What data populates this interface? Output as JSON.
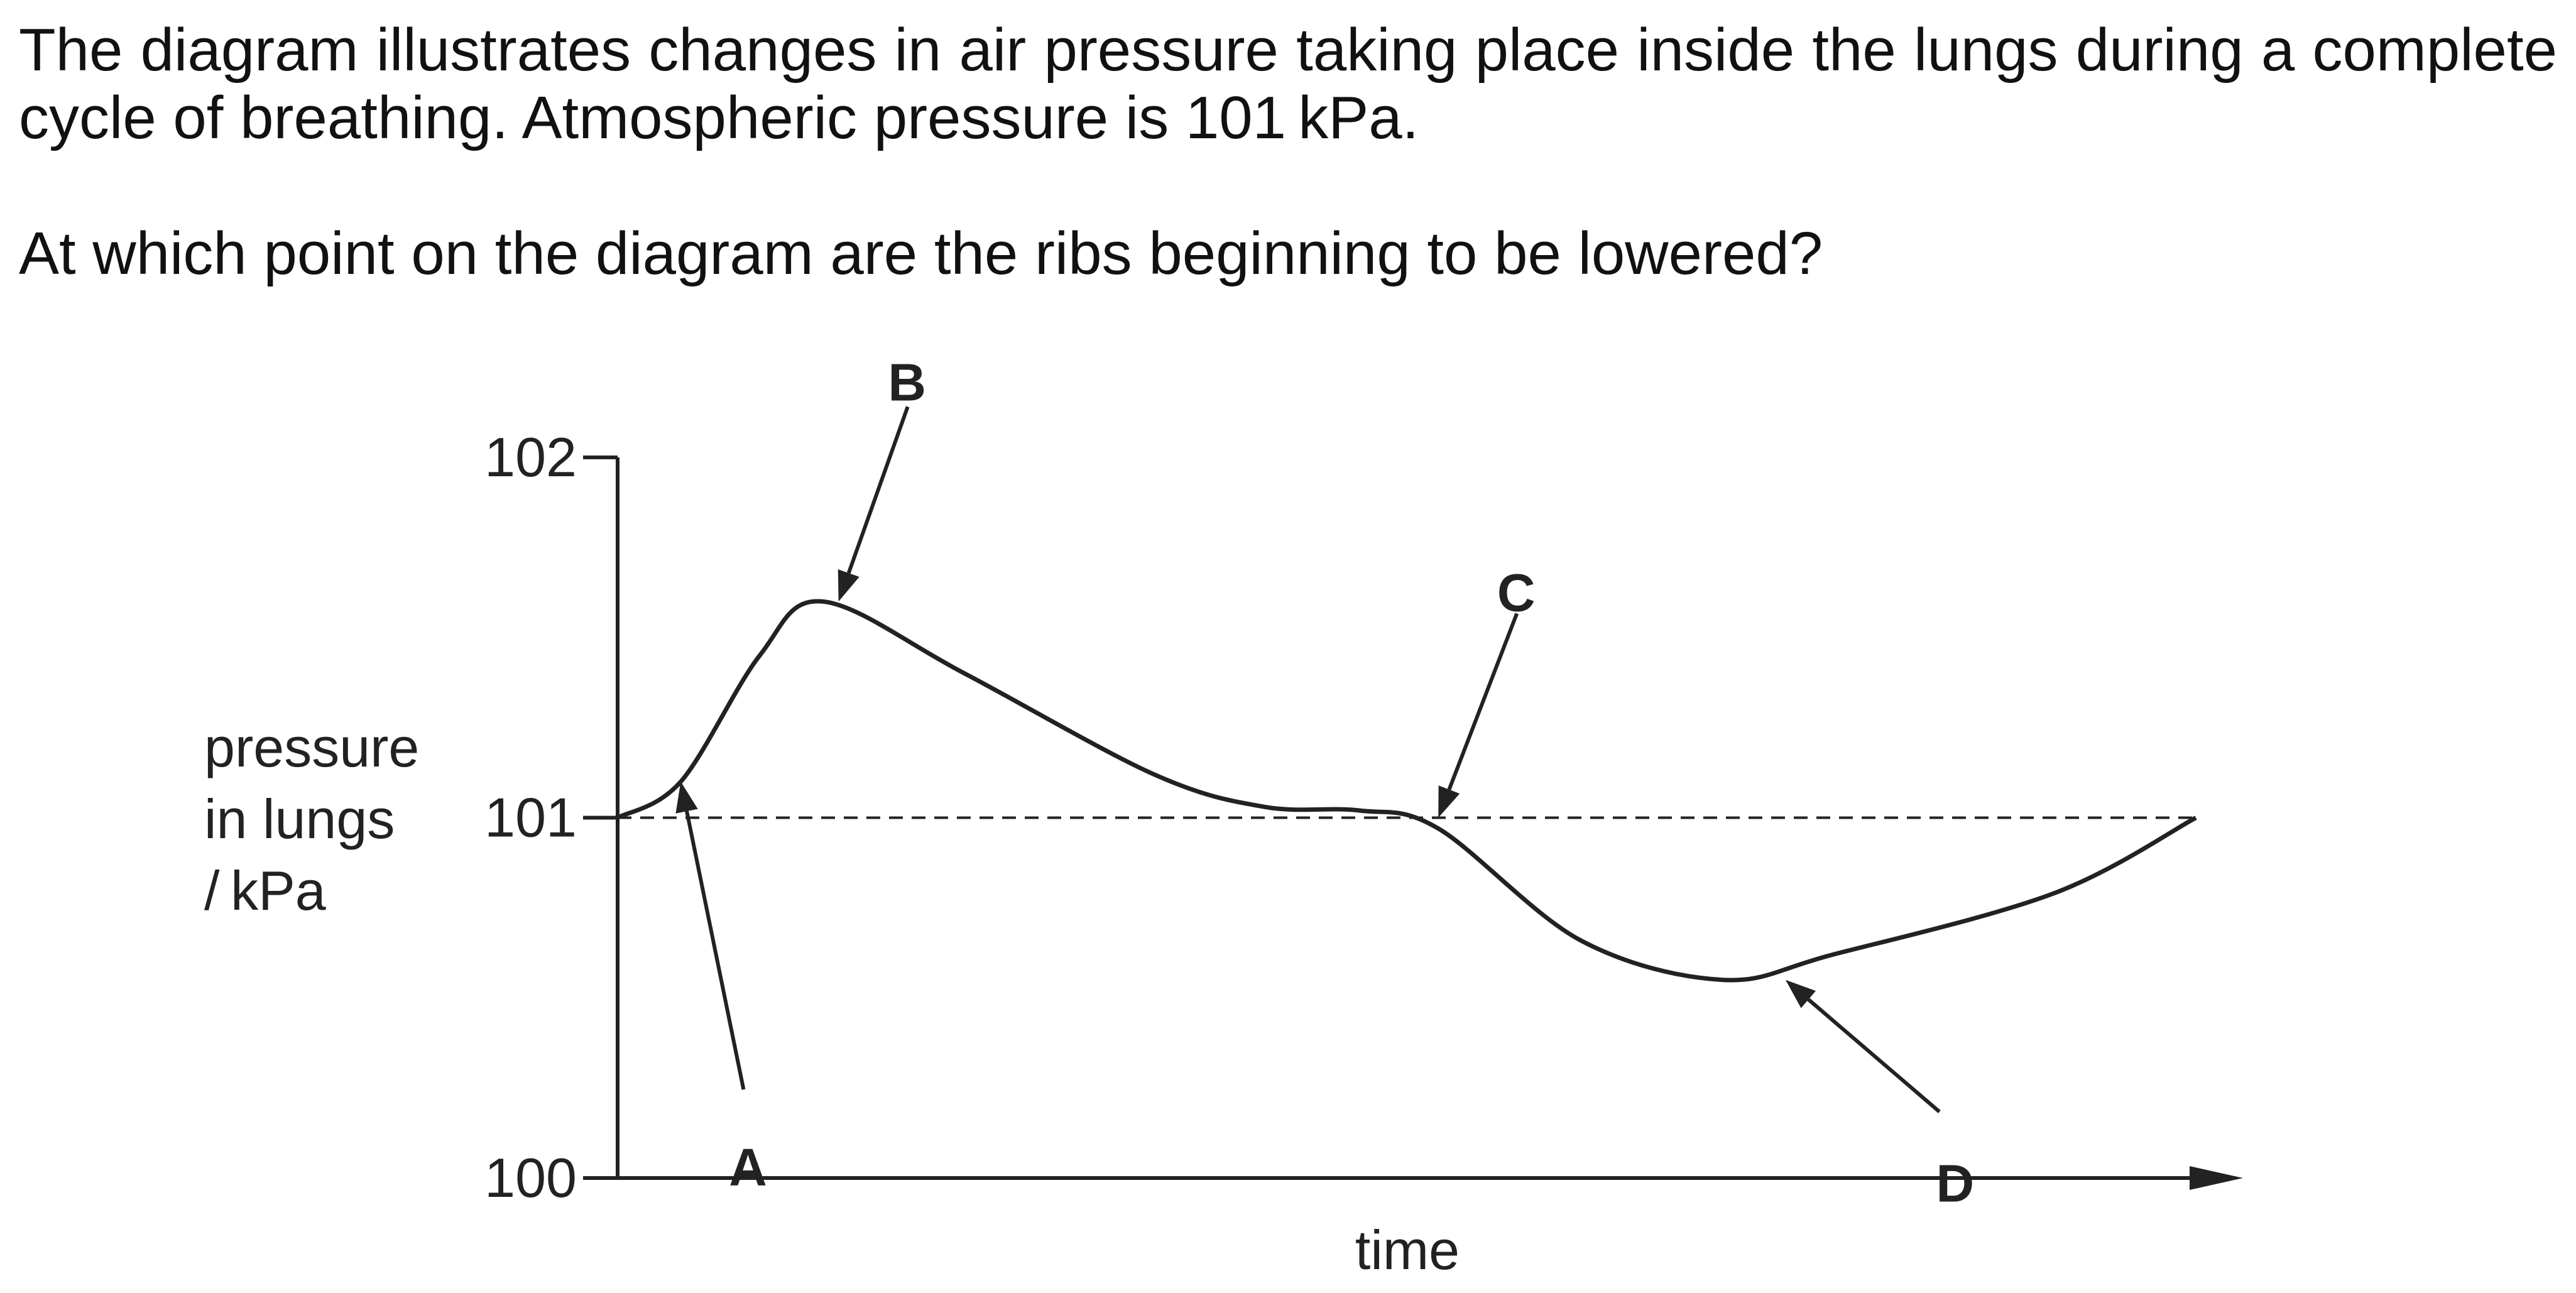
{
  "question": {
    "line1": "The diagram illustrates changes in air pressure taking place inside the lungs during a complete",
    "line2": "cycle of breathing. Atmospheric pressure is 101 kPa.",
    "line3": "At which point on the diagram are the ribs beginning to be lowered?"
  },
  "colors": {
    "ink": "#222222",
    "background": "#ffffff"
  },
  "chart_data": {
    "type": "line",
    "title": "",
    "xlabel": "time",
    "ylabel": [
      "pressure",
      "in lungs",
      "/ kPa"
    ],
    "ylim": [
      100,
      102
    ],
    "yticks": [
      {
        "value": 100,
        "label": "100"
      },
      {
        "value": 101,
        "label": "101"
      },
      {
        "value": 102,
        "label": "102"
      }
    ],
    "x_ticks_shown": false,
    "grid": false,
    "reference_line": {
      "y": 101,
      "style": "dashed"
    },
    "series": [
      {
        "points": [
          {
            "x": 0.0,
            "y": 101.0
          },
          {
            "x": 0.04,
            "y": 101.1
          },
          {
            "x": 0.09,
            "y": 101.45
          },
          {
            "x": 0.13,
            "y": 101.6
          },
          {
            "x": 0.22,
            "y": 101.4
          },
          {
            "x": 0.34,
            "y": 101.12
          },
          {
            "x": 0.41,
            "y": 101.03
          },
          {
            "x": 0.47,
            "y": 101.02
          },
          {
            "x": 0.52,
            "y": 100.97
          },
          {
            "x": 0.61,
            "y": 100.66
          },
          {
            "x": 0.7,
            "y": 100.55
          },
          {
            "x": 0.77,
            "y": 100.62
          },
          {
            "x": 0.91,
            "y": 100.79
          },
          {
            "x": 1.0,
            "y": 101.0
          }
        ]
      }
    ],
    "annotations": [
      {
        "label": "A",
        "x": 0.04,
        "y": 101.1
      },
      {
        "label": "B",
        "x": 0.14,
        "y": 101.6
      },
      {
        "label": "C",
        "x": 0.52,
        "y": 101.0
      },
      {
        "label": "D",
        "x": 0.74,
        "y": 100.55
      }
    ]
  }
}
